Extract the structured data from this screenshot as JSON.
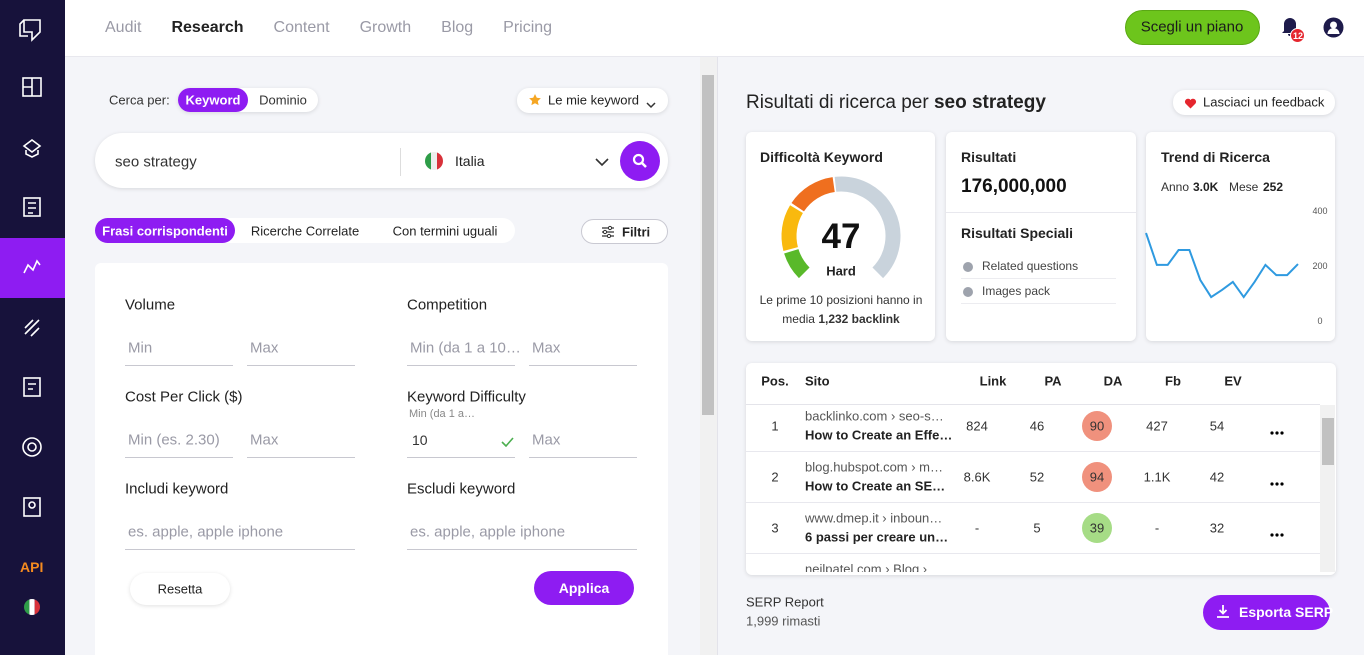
{
  "sidebar": {
    "api": "API"
  },
  "nav": {
    "items": [
      "Audit",
      "Research",
      "Content",
      "Growth",
      "Blog",
      "Pricing"
    ],
    "active": 1,
    "cta": "Scegli un piano",
    "notifications": 12
  },
  "search": {
    "label": "Cerca per:",
    "modes": [
      "Keyword",
      "Dominio"
    ],
    "active_mode": 0,
    "my_keywords": "Le mie keyword",
    "query": "seo strategy",
    "country": "Italia"
  },
  "tabs": {
    "items": [
      "Frasi corrispondenti",
      "Ricerche Correlate",
      "Con termini uguali"
    ],
    "active": 0,
    "filters": "Filtri"
  },
  "filters": {
    "fields": [
      {
        "label": "Volume",
        "inputs": [
          {
            "placeholder": "Min"
          },
          {
            "placeholder": "Max"
          }
        ]
      },
      {
        "label": "Competition",
        "inputs": [
          {
            "placeholder": "Min (da 1 a 10…"
          },
          {
            "placeholder": "Max"
          }
        ]
      },
      {
        "label": "Cost Per Click ($)",
        "inputs": [
          {
            "placeholder": "Min (es. 2.30)"
          },
          {
            "placeholder": "Max"
          }
        ]
      },
      {
        "label": "Keyword Difficulty",
        "hint": "Min (da 1 a…",
        "inputs": [
          {
            "value": 10,
            "valid": true
          },
          {
            "placeholder": "Max"
          }
        ]
      },
      {
        "label": "Includi keyword",
        "inputs": [
          {
            "placeholder": "es. apple, apple iphone"
          }
        ]
      },
      {
        "label": "Escludi keyword",
        "inputs": [
          {
            "placeholder": "es. apple, apple iphone"
          }
        ]
      }
    ],
    "reset": "Resetta",
    "apply": "Applica"
  },
  "results": {
    "title_prefix": "Risultati di ricerca per",
    "title_query": "seo strategy",
    "feedback": "Lasciaci un feedback"
  },
  "difficulty": {
    "title": "Difficoltà Keyword",
    "value": 47,
    "label": "Hard",
    "note_prefix": "Le prime 10 posizioni hanno in media",
    "note_value": "1,232 backlink"
  },
  "serp_results": {
    "title": "Risultati",
    "value": "176,000,000",
    "special_title": "Risultati Speciali",
    "special": [
      "Related questions",
      "Images pack"
    ]
  },
  "trend": {
    "title": "Trend di Ricerca",
    "year_label": "Anno",
    "year": "3.0K",
    "month_label": "Mese",
    "month": 252
  },
  "chart_data": {
    "type": "line",
    "values": [
      320,
      204,
      204,
      258,
      258,
      149,
      87,
      113,
      142,
      87,
      142,
      204,
      167,
      167,
      207
    ],
    "ylim": [
      0,
      400
    ],
    "yticks": [
      0,
      200,
      400
    ],
    "color": "#2f9ae0"
  },
  "table": {
    "columns": [
      "Pos.",
      "Sito",
      "Link",
      "PA",
      "DA",
      "Fb",
      "EV"
    ],
    "rows": [
      {
        "pos": 1,
        "domain": "backlinko.com › seo-s…",
        "title": "How to Create an Effe…",
        "link": 824,
        "pa": 46,
        "da": 90,
        "fb": 427,
        "ev": 54
      },
      {
        "pos": 2,
        "domain": "blog.hubspot.com › m…",
        "title": "How to Create an SE…",
        "link": "8.6K",
        "pa": 52,
        "da": 94,
        "fb": "1.1K",
        "ev": 42
      },
      {
        "pos": 3,
        "domain": "www.dmep.it › inboun…",
        "title": "6 passi per creare un…",
        "link": "-",
        "pa": 5,
        "da": 39,
        "fb": "-",
        "ev": 32
      },
      {
        "domain": "neilpatel.com › Blog ›"
      }
    ]
  },
  "footer": {
    "title": "SERP Report",
    "remaining": "1,999 rimasti",
    "export": "Esporta SERP"
  }
}
